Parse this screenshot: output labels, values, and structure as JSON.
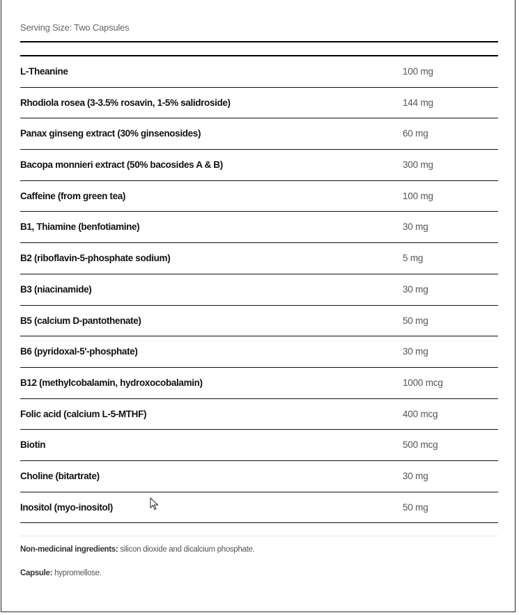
{
  "serving_size": "Serving Size: Two Capsules",
  "ingredients": [
    {
      "name": "L-Theanine",
      "amount": "100 mg"
    },
    {
      "name": "Rhodiola rosea (3-3.5% rosavin, 1-5% salidroside)",
      "amount": "144 mg"
    },
    {
      "name": "Panax ginseng extract (30% ginsenosides)",
      "amount": "60 mg"
    },
    {
      "name": "Bacopa monnieri extract (50% bacosides A & B)",
      "amount": "300 mg"
    },
    {
      "name": "Caffeine (from green tea)",
      "amount": "100 mg"
    },
    {
      "name": "B1, Thiamine (benfotiamine)",
      "amount": "30 mg"
    },
    {
      "name": "B2 (riboflavin-5-phosphate sodium)",
      "amount": "5 mg"
    },
    {
      "name": "B3 (niacinamide)",
      "amount": "30 mg"
    },
    {
      "name": "B5 (calcium D-pantothenate)",
      "amount": "50 mg"
    },
    {
      "name": "B6 (pyridoxal-5'-phosphate)",
      "amount": "30 mg"
    },
    {
      "name": "B12 (methylcobalamin, hydroxocobalamin)",
      "amount": "1000 mcg"
    },
    {
      "name": "Folic acid (calcium L-5-MTHF)",
      "amount": "400 mcg"
    },
    {
      "name": "Biotin",
      "amount": "500 mcg"
    },
    {
      "name": "Choline (bitartrate)",
      "amount": "30 mg"
    },
    {
      "name": "Inositol (myo-inositol)",
      "amount": "50 mg"
    }
  ],
  "notes": {
    "non_medicinal_label": "Non-medicinal ingredients:",
    "non_medicinal_text": " silicon dioxide and dicalcium phosphate.",
    "capsule_label": "Capsule:",
    "capsule_text": " hypromellose."
  },
  "icons": {
    "cursor": "mouse-pointer-icon"
  }
}
